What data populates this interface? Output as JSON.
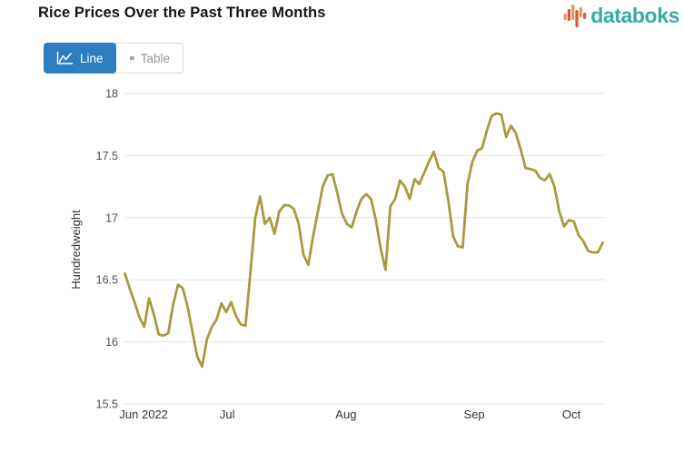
{
  "header": {
    "title": "Rice Prices Over the Past Three Months",
    "logo_text": "databoks"
  },
  "toolbar": {
    "line_label": "Line",
    "table_label": "Table"
  },
  "colors": {
    "accent_blue": "#2d7ec0",
    "logo_teal": "#36aca1",
    "logo_red": "#e05243",
    "logo_orange": "#f2964e",
    "grid": "#e3e3e3",
    "axis_text": "#4d4d4d",
    "line": "#a89a40"
  },
  "chart_data": {
    "type": "line",
    "title": "Rice Prices Over the Past Three Months",
    "xlabel": "",
    "ylabel": "Hundredweight",
    "ylim": [
      15.5,
      18
    ],
    "grid": true,
    "legend": false,
    "line_color": "#a89a40",
    "y_tick_labels": [
      "15.5",
      "16",
      "16.5",
      "17",
      "17.5",
      "18"
    ],
    "x_tick_labels": [
      {
        "label": "Jun 2022",
        "pos": 0.04
      },
      {
        "label": "Jul",
        "pos": 0.214
      },
      {
        "label": "Aug",
        "pos": 0.461
      },
      {
        "label": "Sep",
        "pos": 0.728
      },
      {
        "label": "Oct",
        "pos": 0.93
      }
    ],
    "values": [
      16.55,
      16.43,
      16.32,
      16.2,
      16.12,
      16.35,
      16.22,
      16.06,
      16.05,
      16.07,
      16.3,
      16.46,
      16.43,
      16.28,
      16.08,
      15.88,
      15.8,
      16.02,
      16.12,
      16.18,
      16.31,
      16.24,
      16.32,
      16.21,
      16.14,
      16.13,
      16.55,
      17.0,
      17.17,
      16.95,
      17.0,
      16.87,
      17.05,
      17.1,
      17.1,
      17.07,
      16.95,
      16.7,
      16.62,
      16.85,
      17.05,
      17.25,
      17.34,
      17.35,
      17.2,
      17.03,
      16.95,
      16.92,
      17.05,
      17.15,
      17.19,
      17.15,
      16.98,
      16.75,
      16.58,
      17.09,
      17.15,
      17.3,
      17.25,
      17.15,
      17.31,
      17.27,
      17.36,
      17.45,
      17.53,
      17.4,
      17.37,
      17.14,
      16.85,
      16.77,
      16.76,
      17.27,
      17.45,
      17.54,
      17.56,
      17.7,
      17.82,
      17.84,
      17.83,
      17.65,
      17.74,
      17.68,
      17.55,
      17.4,
      17.39,
      17.38,
      17.32,
      17.3,
      17.35,
      17.25,
      17.05,
      16.93,
      16.98,
      16.97,
      16.86,
      16.81,
      16.73,
      16.72,
      16.72,
      16.8
    ]
  }
}
